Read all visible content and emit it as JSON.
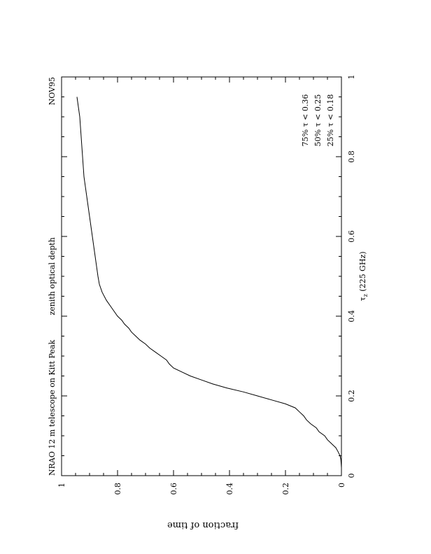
{
  "chart_data": {
    "type": "line",
    "title": "NRAO 12 m telescope on Kitt Peak",
    "subtitle": "zenith optical depth",
    "date_label": "NOV95",
    "xlabel": "τz (225 GHz)",
    "xlabel_main": "τ",
    "xlabel_sub": "z",
    "xlabel_rest": " (225 GHz)",
    "ylabel": "fraction of time",
    "xlim": [
      0,
      1
    ],
    "ylim": [
      0,
      1
    ],
    "x_ticks": [
      "0",
      "0.2",
      "0.4",
      "0.6",
      "0.8",
      "1"
    ],
    "y_ticks": [
      "0",
      "0.2",
      "0.4",
      "0.6",
      "0.8",
      "1"
    ],
    "x_tick_values": [
      0,
      0.2,
      0.4,
      0.6,
      0.8,
      1
    ],
    "y_tick_values": [
      0,
      0.2,
      0.4,
      0.6,
      0.8,
      1
    ],
    "grid": false,
    "annotations": [
      "75% τ < 0.36",
      "50% τ < 0.25",
      "25% τ < 0.18"
    ],
    "series": [
      {
        "x": [
          0.0,
          0.02,
          0.04,
          0.05,
          0.06,
          0.07,
          0.08,
          0.09,
          0.1,
          0.11,
          0.12,
          0.13,
          0.14,
          0.15,
          0.16,
          0.17,
          0.18,
          0.19,
          0.2,
          0.21,
          0.22,
          0.23,
          0.24,
          0.25,
          0.26,
          0.27,
          0.28,
          0.29,
          0.3,
          0.31,
          0.32,
          0.33,
          0.34,
          0.35,
          0.36,
          0.37,
          0.38,
          0.39,
          0.4,
          0.42,
          0.44,
          0.46,
          0.48,
          0.5,
          0.55,
          0.6,
          0.65,
          0.7,
          0.75,
          0.8,
          0.85,
          0.9,
          0.95
        ],
        "y": [
          0.0,
          0.0,
          0.002,
          0.005,
          0.012,
          0.02,
          0.035,
          0.05,
          0.06,
          0.08,
          0.09,
          0.11,
          0.125,
          0.135,
          0.15,
          0.165,
          0.2,
          0.25,
          0.3,
          0.35,
          0.41,
          0.46,
          0.5,
          0.54,
          0.57,
          0.6,
          0.615,
          0.625,
          0.645,
          0.665,
          0.685,
          0.7,
          0.72,
          0.735,
          0.75,
          0.76,
          0.775,
          0.785,
          0.8,
          0.82,
          0.84,
          0.855,
          0.865,
          0.87,
          0.88,
          0.89,
          0.9,
          0.91,
          0.92,
          0.925,
          0.93,
          0.935,
          0.945
        ]
      }
    ]
  }
}
